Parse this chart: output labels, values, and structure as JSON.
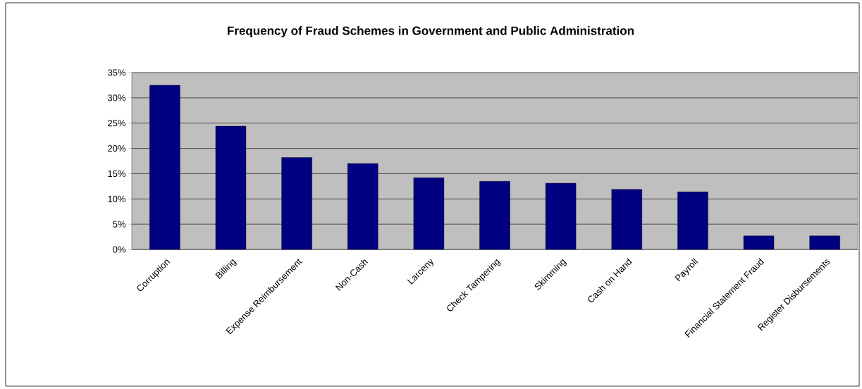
{
  "chart_data": {
    "type": "bar",
    "title": "Frequency of Fraud Schemes in Government and Public Administration",
    "categories": [
      "Corruption",
      "Billing",
      "Expense Reimbursement",
      "Non-Cash",
      "Larceny",
      "Check Tampering",
      "Skimming",
      "Cash on Hand",
      "Payroll",
      "Financial Statement Fraud",
      "Register Disbursements"
    ],
    "values": [
      32.5,
      24.4,
      18.2,
      17.0,
      14.2,
      13.5,
      13.1,
      11.9,
      11.4,
      2.7,
      2.7
    ],
    "color": "#000080",
    "ylim": [
      0,
      35
    ],
    "yticks": [
      {
        "value": 0,
        "label": "0%"
      },
      {
        "value": 5,
        "label": "5%"
      },
      {
        "value": 10,
        "label": "10%"
      },
      {
        "value": 15,
        "label": "15%"
      },
      {
        "value": 20,
        "label": "20%"
      },
      {
        "value": 25,
        "label": "25%"
      },
      {
        "value": 30,
        "label": "30%"
      },
      {
        "value": 35,
        "label": "35%"
      }
    ],
    "grid": "y"
  }
}
